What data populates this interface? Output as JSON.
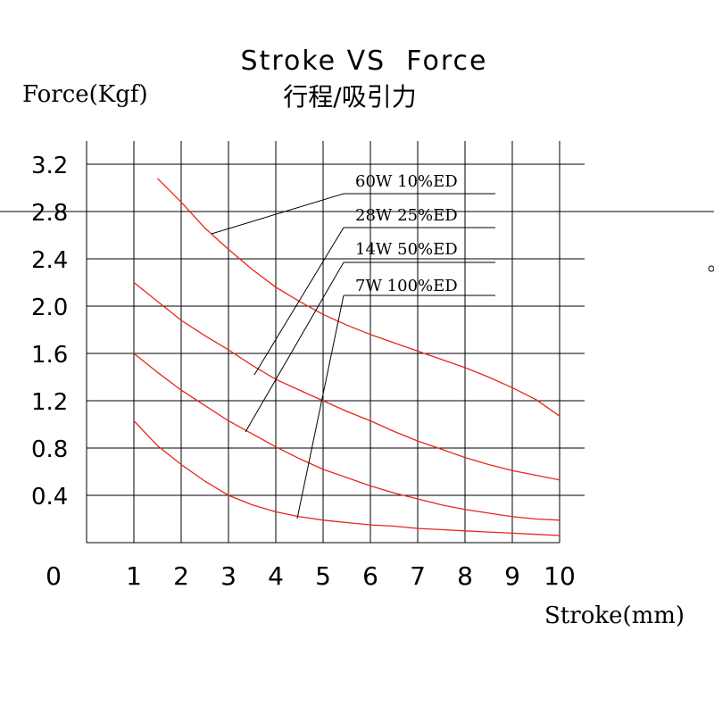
{
  "chart_data": {
    "type": "line",
    "title": "Stroke VS  Force",
    "subtitle": "行程/吸引力",
    "xlabel": "Stroke(mm)",
    "ylabel": "Force(Kgf)",
    "xlim": [
      0,
      10
    ],
    "ylim": [
      0,
      3.2
    ],
    "x_ticks": [
      "0",
      "1",
      "2",
      "3",
      "4",
      "5",
      "6",
      "7",
      "8",
      "9",
      "10"
    ],
    "y_ticks": [
      "0.4",
      "0.8",
      "1.2",
      "1.6",
      "2.0",
      "2.4",
      "2.8",
      "3.2"
    ],
    "grid": true,
    "series": [
      {
        "name": "60W  10%ED",
        "x": [
          1.5,
          2,
          2.5,
          3,
          3.5,
          4,
          4.5,
          5,
          5.5,
          6,
          6.5,
          7,
          7.5,
          8,
          8.5,
          9,
          9.5,
          10
        ],
        "y": [
          3.08,
          2.88,
          2.66,
          2.48,
          2.31,
          2.16,
          2.04,
          1.93,
          1.84,
          1.76,
          1.69,
          1.62,
          1.55,
          1.48,
          1.4,
          1.31,
          1.21,
          1.07
        ]
      },
      {
        "name": "28W  25%ED",
        "x": [
          1,
          1.5,
          2,
          2.5,
          3,
          3.5,
          4,
          4.5,
          5,
          5.5,
          6,
          6.5,
          7,
          7.5,
          8,
          8.5,
          9,
          9.5,
          10
        ],
        "y": [
          2.2,
          2.04,
          1.88,
          1.75,
          1.63,
          1.5,
          1.38,
          1.29,
          1.2,
          1.11,
          1.03,
          0.94,
          0.86,
          0.79,
          0.72,
          0.66,
          0.61,
          0.57,
          0.53
        ]
      },
      {
        "name": "14W  50%ED",
        "x": [
          1,
          1.5,
          2,
          2.5,
          3,
          3.5,
          4,
          4.5,
          5,
          5.5,
          6,
          6.5,
          7,
          7.5,
          8,
          8.5,
          9,
          9.5,
          10
        ],
        "y": [
          1.6,
          1.44,
          1.29,
          1.16,
          1.03,
          0.92,
          0.81,
          0.71,
          0.62,
          0.55,
          0.48,
          0.42,
          0.37,
          0.32,
          0.28,
          0.25,
          0.22,
          0.2,
          0.19
        ]
      },
      {
        "name": "7W  100%ED",
        "x": [
          1,
          1.5,
          2,
          2.5,
          3,
          3.5,
          4,
          4.5,
          5,
          5.5,
          6,
          6.5,
          7,
          7.5,
          8,
          8.5,
          9,
          9.5,
          10
        ],
        "y": [
          1.03,
          0.82,
          0.66,
          0.52,
          0.4,
          0.32,
          0.26,
          0.22,
          0.19,
          0.17,
          0.15,
          0.14,
          0.12,
          0.11,
          0.1,
          0.09,
          0.08,
          0.07,
          0.06
        ]
      }
    ],
    "legend_position": "top-right"
  }
}
